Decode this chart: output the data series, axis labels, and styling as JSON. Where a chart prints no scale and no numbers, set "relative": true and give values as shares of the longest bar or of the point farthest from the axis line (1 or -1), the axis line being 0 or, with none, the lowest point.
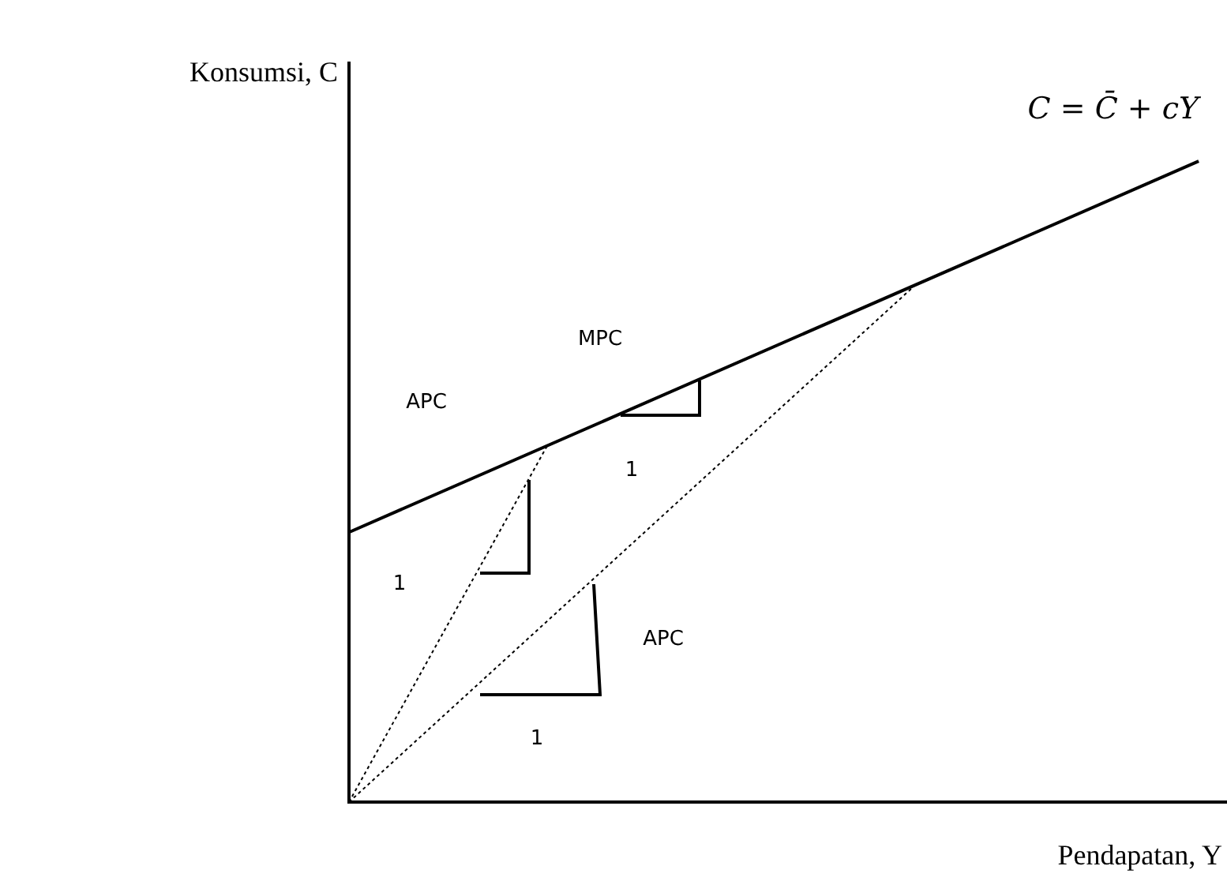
{
  "chart_data": {
    "type": "line",
    "relative": true,
    "xlabel": "Pendapatan, Y",
    "ylabel": "Konsumsi, C",
    "categories": [
      null,
      null,
      null,
      null,
      null,
      null,
      null,
      null,
      null,
      null,
      null,
      null,
      null,
      null,
      null,
      null,
      null,
      null,
      null,
      null,
      null,
      null,
      null,
      null,
      null,
      null,
      null,
      null,
      null,
      null,
      null,
      null
    ],
    "series": [
      {
        "name": "C = C̄ + cY",
        "color": "#000000",
        "line_style": "solid",
        "values": [
          0.421,
          null,
          null,
          null,
          null,
          null,
          null,
          null,
          null,
          null,
          null,
          null,
          null,
          null,
          null,
          null,
          null,
          null,
          null,
          null,
          null,
          null,
          null,
          null,
          null,
          null,
          null,
          null,
          null,
          null,
          1,
          null
        ]
      },
      {
        "color": "#000000",
        "line_style": "dotted",
        "values": [
          0,
          null,
          null,
          null,
          null,
          null,
          null,
          0.556,
          null,
          null,
          null,
          null,
          null,
          null,
          null,
          null,
          null,
          null,
          null,
          null,
          null,
          null,
          null,
          null,
          null,
          null,
          null,
          null,
          null,
          null,
          null,
          null
        ]
      },
      {
        "color": "#000000",
        "line_style": "dotted",
        "values": [
          0,
          null,
          null,
          null,
          null,
          null,
          null,
          null,
          null,
          null,
          null,
          null,
          null,
          null,
          null,
          null,
          null,
          null,
          null,
          null,
          0.807,
          null,
          null,
          null,
          null,
          null,
          null,
          null,
          null,
          null,
          null,
          null
        ]
      }
    ],
    "annotations": [
      "APC",
      "MPC",
      "1",
      "1",
      "APC",
      "1"
    ],
    "marker": "none",
    "grid": false,
    "legend": false,
    "tick_labels": false
  }
}
